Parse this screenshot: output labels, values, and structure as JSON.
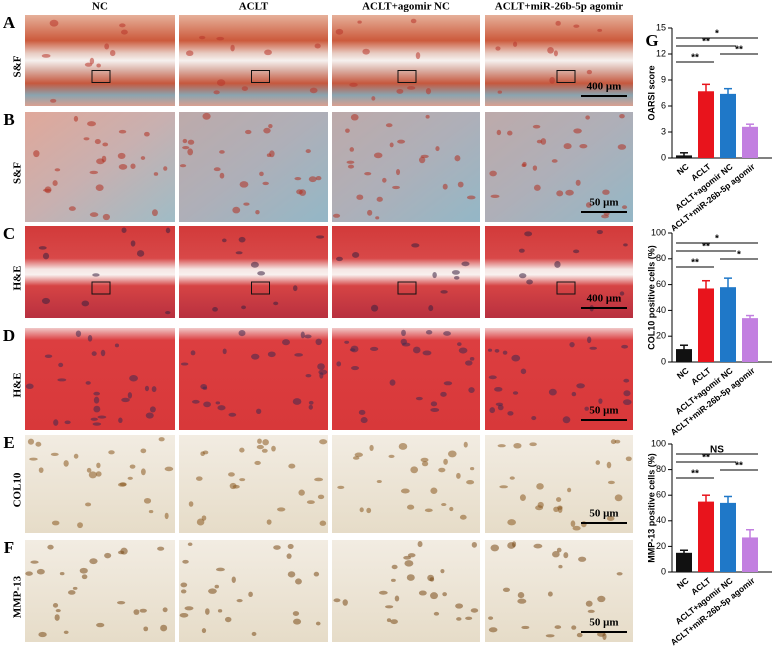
{
  "figure": {
    "columns": [
      "NC",
      "ACLT",
      "ACLT+agomir NC",
      "ACLT+miR-26b-5p agomir"
    ],
    "rows": [
      {
        "letter": "A",
        "stain": "S&F",
        "scale_bar": "400 μm"
      },
      {
        "letter": "B",
        "stain": "S&F",
        "scale_bar": "50 μm"
      },
      {
        "letter": "C",
        "stain": "H&E",
        "scale_bar": "400 μm"
      },
      {
        "letter": "D",
        "stain": "H&E",
        "scale_bar": "50 μm"
      },
      {
        "letter": "E",
        "stain": "COL10",
        "scale_bar": "50 μm"
      },
      {
        "letter": "F",
        "stain": "MMP-13",
        "scale_bar": "50 μm"
      }
    ],
    "chart_letter": "G"
  },
  "chart_data": [
    {
      "type": "bar",
      "y_label": "OARSI score",
      "categories": [
        "NC",
        "ACLT",
        "ACLT+agomir NC",
        "ACLT+miR-26b-5p agomir"
      ],
      "values": [
        0.3,
        7.7,
        7.4,
        3.6
      ],
      "errors": [
        0.3,
        0.8,
        0.6,
        0.3
      ],
      "colors": [
        "#111111",
        "#e8141c",
        "#1f78c8",
        "#c27fe0"
      ],
      "ylim": [
        0,
        15
      ],
      "yticks": [
        0,
        3,
        6,
        9,
        12,
        15
      ],
      "annotations": [
        {
          "text": "*",
          "between": [
            "NC",
            "ACLT+miR-26b-5p agomir"
          ]
        },
        {
          "text": "**",
          "between": [
            "NC",
            "ACLT+agomir NC"
          ]
        },
        {
          "text": "**",
          "between": [
            "ACLT+agomir NC",
            "ACLT+miR-26b-5p agomir"
          ]
        },
        {
          "text": "**",
          "between": [
            "NC",
            "ACLT"
          ]
        }
      ]
    },
    {
      "type": "bar",
      "y_label": "COL10 positive cells (%)",
      "categories": [
        "NC",
        "ACLT",
        "ACLT+agomir NC",
        "ACLT+miR-26b-5p agomir"
      ],
      "values": [
        10,
        57,
        58,
        34
      ],
      "errors": [
        3,
        6,
        7,
        2
      ],
      "colors": [
        "#111111",
        "#e8141c",
        "#1f78c8",
        "#c27fe0"
      ],
      "ylim": [
        0,
        100
      ],
      "yticks": [
        0,
        20,
        40,
        60,
        80,
        100
      ],
      "annotations": [
        {
          "text": "*",
          "between": [
            "NC",
            "ACLT+miR-26b-5p agomir"
          ]
        },
        {
          "text": "**",
          "between": [
            "NC",
            "ACLT+agomir NC"
          ]
        },
        {
          "text": "*",
          "between": [
            "ACLT+agomir NC",
            "ACLT+miR-26b-5p agomir"
          ]
        },
        {
          "text": "**",
          "between": [
            "NC",
            "ACLT"
          ]
        }
      ]
    },
    {
      "type": "bar",
      "y_label": "MMP-13 positive cells (%)",
      "categories": [
        "NC",
        "ACLT",
        "ACLT+agomir NC",
        "ACLT+miR-26b-5p agomir"
      ],
      "values": [
        15,
        55,
        54,
        27
      ],
      "errors": [
        2,
        5,
        5,
        6
      ],
      "colors": [
        "#111111",
        "#e8141c",
        "#1f78c8",
        "#c27fe0"
      ],
      "ylim": [
        0,
        100
      ],
      "yticks": [
        0,
        20,
        40,
        60,
        80,
        100
      ],
      "annotations": [
        {
          "text": "NS",
          "between": [
            "NC",
            "ACLT+miR-26b-5p agomir"
          ]
        },
        {
          "text": "**",
          "between": [
            "NC",
            "ACLT+agomir NC"
          ]
        },
        {
          "text": "**",
          "between": [
            "ACLT+agomir NC",
            "ACLT+miR-26b-5p agomir"
          ]
        },
        {
          "text": "**",
          "between": [
            "NC",
            "ACLT"
          ]
        }
      ]
    }
  ]
}
